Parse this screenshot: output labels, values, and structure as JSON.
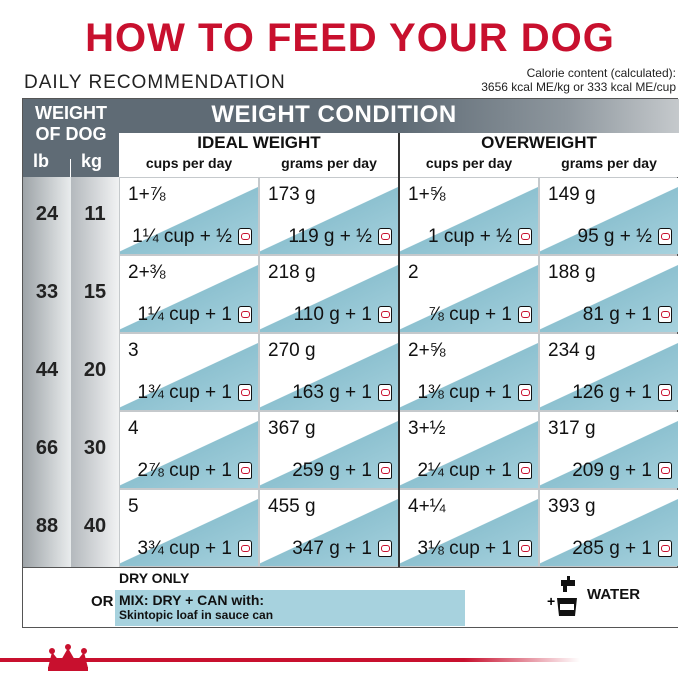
{
  "title": "HOW TO FEED YOUR DOG",
  "daily_label": "DAILY RECOMMENDATION",
  "calorie": {
    "line1": "Calorie content (calculated):",
    "line2": "3656 kcal ME/kg or 333 kcal ME/cup"
  },
  "headers": {
    "weight_of_dog": "WEIGHT OF DOG",
    "lb": "lb",
    "kg": "kg",
    "weight_condition": "WEIGHT CONDITION",
    "ideal": "IDEAL WEIGHT",
    "over": "OVERWEIGHT",
    "cols": [
      "cups per day",
      "grams per day",
      "cups per day",
      "grams per day"
    ]
  },
  "rows": [
    {
      "lb": "24",
      "kg": "11",
      "cells": [
        {
          "top": "1+⅞",
          "bottom": "1¼ cup + ½"
        },
        {
          "top": "173 g",
          "bottom": "119 g + ½"
        },
        {
          "top": "1+⅝",
          "bottom": "1 cup + ½"
        },
        {
          "top": "149 g",
          "bottom": "95 g + ½"
        }
      ]
    },
    {
      "lb": "33",
      "kg": "15",
      "cells": [
        {
          "top": "2+⅜",
          "bottom": "1¼ cup + 1"
        },
        {
          "top": "218 g",
          "bottom": "110 g + 1"
        },
        {
          "top": "2",
          "bottom": "⅞ cup + 1"
        },
        {
          "top": "188 g",
          "bottom": "81 g + 1"
        }
      ]
    },
    {
      "lb": "44",
      "kg": "20",
      "cells": [
        {
          "top": "3",
          "bottom": "1¾ cup + 1"
        },
        {
          "top": "270 g",
          "bottom": "163 g + 1"
        },
        {
          "top": "2+⅝",
          "bottom": "1⅜ cup + 1"
        },
        {
          "top": "234 g",
          "bottom": "126 g + 1"
        }
      ]
    },
    {
      "lb": "66",
      "kg": "30",
      "cells": [
        {
          "top": "4",
          "bottom": "2⅞ cup + 1"
        },
        {
          "top": "367 g",
          "bottom": "259 g + 1"
        },
        {
          "top": "3+½",
          "bottom": "2¼ cup + 1"
        },
        {
          "top": "317 g",
          "bottom": "209 g + 1"
        }
      ]
    },
    {
      "lb": "88",
      "kg": "40",
      "cells": [
        {
          "top": "5",
          "bottom": "3¾ cup + 1"
        },
        {
          "top": "455 g",
          "bottom": "347 g + 1"
        },
        {
          "top": "4+¼",
          "bottom": "3⅛ cup + 1"
        },
        {
          "top": "393 g",
          "bottom": "285 g + 1"
        }
      ]
    }
  ],
  "legend": {
    "or": "OR",
    "dry_only": "DRY ONLY",
    "mix": "MIX: DRY + CAN with:",
    "mix_sub": "Skintopic loaf in sauce can",
    "water": "WATER"
  },
  "icons": {
    "can": "can-icon",
    "water": "water-tap-icon",
    "brand": "crown-logo"
  },
  "colors": {
    "brand_red": "#c8102e",
    "header_gray": "#5f6b75",
    "cell_blue": "#a7d2de"
  }
}
